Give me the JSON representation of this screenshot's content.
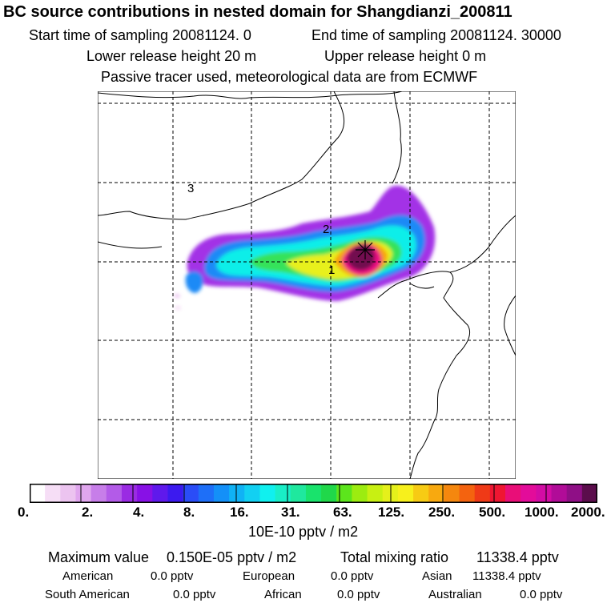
{
  "header": {
    "title": "BC  source contributions in nested domain for Shangdianzi_200811",
    "start_label": "Start time of sampling 20081124.     0",
    "end_label": "End time of sampling 20081124. 30000",
    "lower_label": "Lower release height   20 m",
    "upper_label": "Upper release height    0 m",
    "info": "Passive tracer used, meteorological data are from ECMWF"
  },
  "map": {
    "markers": [
      {
        "label": "1"
      },
      {
        "label": "2"
      },
      {
        "label": "3"
      }
    ]
  },
  "colorbar": {
    "ticks": [
      "0.",
      "2.",
      "4.",
      "8.",
      "16.",
      "31.",
      "63.",
      "125.",
      "250.",
      "500.",
      "1000.",
      "2000."
    ],
    "units": "10E-10 pptv / m2",
    "colors": [
      "#ffffff",
      "#f6def6",
      "#ecc4f0",
      "#e0a6ee",
      "#c77ee9",
      "#b35be8",
      "#9a2be3",
      "#8811e6",
      "#5f19ec",
      "#3c1aef",
      "#2a4df7",
      "#1e6ff8",
      "#1490f8",
      "#10b2f5",
      "#12d0f2",
      "#10f0ef",
      "#19eec7",
      "#1fe89e",
      "#19e36c",
      "#20d84a",
      "#5ce51c",
      "#9cec10",
      "#c8f012",
      "#e5f01b",
      "#f7f01c",
      "#f7cb14",
      "#f8a90f",
      "#f5870e",
      "#f4630f",
      "#ef3a17",
      "#ef1632",
      "#e90e78",
      "#e30c9a",
      "#d20ca4",
      "#b10c98",
      "#8f0f86",
      "#5b0d4c"
    ]
  },
  "footer": {
    "max_label": "Maximum value",
    "max_value": "0.150E-05 pptv / m2",
    "total_label": "Total mixing ratio",
    "total_value": "11338.4 pptv",
    "contributions": [
      {
        "name": "American",
        "value": "0.0 pptv"
      },
      {
        "name": "European",
        "value": "0.0 pptv"
      },
      {
        "name": "Asian",
        "value": "11338.4 pptv"
      },
      {
        "name": "South American",
        "value": "0.0 pptv"
      },
      {
        "name": "African",
        "value": "0.0 pptv"
      },
      {
        "name": "Australian",
        "value": "0.0 pptv"
      }
    ]
  }
}
